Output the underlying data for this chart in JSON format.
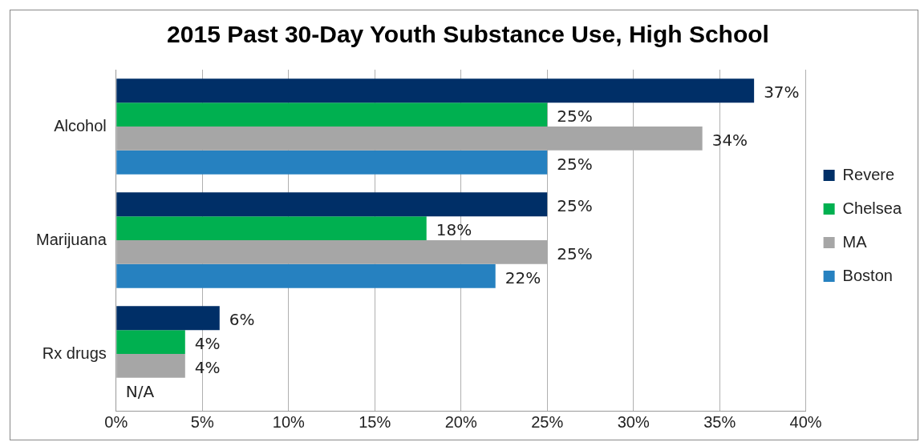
{
  "chart_data": {
    "type": "bar",
    "orientation": "horizontal",
    "title": "2015 Past 30-Day Youth Substance Use, High School",
    "categories": [
      "Alcohol",
      "Marijuana",
      "Rx drugs"
    ],
    "series": [
      {
        "name": "Revere",
        "color": "#002f67",
        "values": [
          37,
          25,
          6
        ],
        "value_labels": [
          "37%",
          "25%",
          "6%"
        ]
      },
      {
        "name": "Chelsea",
        "color": "#00b050",
        "values": [
          25,
          18,
          4
        ],
        "value_labels": [
          "25%",
          "18%",
          "4%"
        ]
      },
      {
        "name": "MA",
        "color": "#a6a6a6",
        "values": [
          34,
          25,
          4
        ],
        "value_labels": [
          "34%",
          "25%",
          "4%"
        ]
      },
      {
        "name": "Boston",
        "color": "#2681c0",
        "values": [
          25,
          22,
          null
        ],
        "value_labels": [
          "25%",
          "22%",
          "N/A"
        ]
      }
    ],
    "xlim": [
      0,
      40
    ],
    "xticks": [
      {
        "value": 0,
        "label": "0%"
      },
      {
        "value": 5,
        "label": "5%"
      },
      {
        "value": 10,
        "label": "10%"
      },
      {
        "value": 15,
        "label": "15%"
      },
      {
        "value": 20,
        "label": "20%"
      },
      {
        "value": 25,
        "label": "25%"
      },
      {
        "value": 30,
        "label": "30%"
      },
      {
        "value": 35,
        "label": "35%"
      },
      {
        "value": 40,
        "label": "40%"
      }
    ],
    "grid": "x",
    "legend": "right"
  }
}
